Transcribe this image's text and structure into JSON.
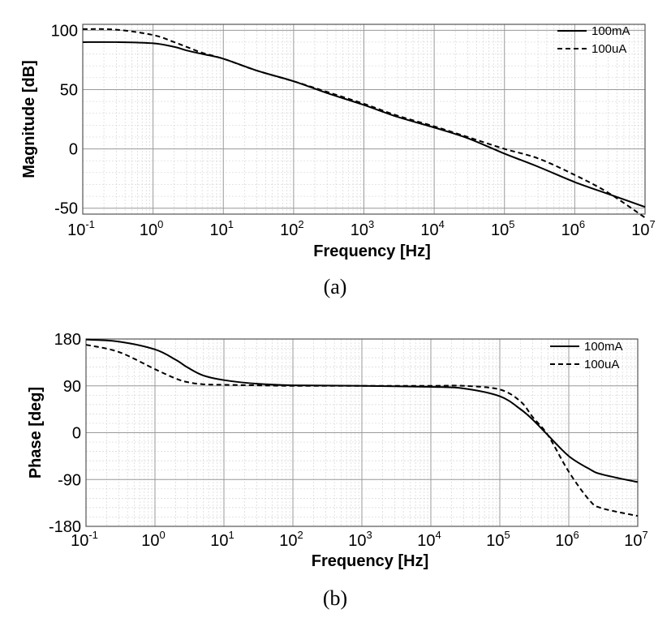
{
  "chart_data": [
    {
      "type": "line",
      "panel_label": "(a)",
      "xlabel": "Frequency [Hz]",
      "ylabel": "Magnitude [dB]",
      "xscale": "log",
      "xlim": [
        0.1,
        10000000
      ],
      "ylim": [
        -55,
        105
      ],
      "x_ticks": [
        {
          "base": "10",
          "exp": "-1"
        },
        {
          "base": "10",
          "exp": "0"
        },
        {
          "base": "10",
          "exp": "1"
        },
        {
          "base": "10",
          "exp": "2"
        },
        {
          "base": "10",
          "exp": "3"
        },
        {
          "base": "10",
          "exp": "4"
        },
        {
          "base": "10",
          "exp": "5"
        },
        {
          "base": "10",
          "exp": "6"
        },
        {
          "base": "10",
          "exp": "7"
        }
      ],
      "y_ticks": [
        "-50",
        "0",
        "50",
        "100"
      ],
      "grid": true,
      "legend": "top-right",
      "x": [
        0.1,
        0.3,
        1,
        2,
        3,
        5,
        10,
        30,
        100,
        300,
        1000,
        3000,
        10000,
        30000,
        100000,
        300000,
        1000000,
        3000000,
        10000000
      ],
      "series": [
        {
          "name": "100mA",
          "style": "solid",
          "values": [
            90,
            90,
            89,
            86,
            83,
            80,
            76,
            66,
            57,
            47,
            37,
            27,
            18,
            9,
            -4,
            -15,
            -28,
            -38,
            -49
          ]
        },
        {
          "name": "100uA",
          "style": "dashed",
          "values": [
            101,
            100.5,
            96,
            90,
            86,
            81,
            76,
            66,
            57,
            48,
            38,
            28,
            19,
            10,
            0,
            -8,
            -22,
            -37,
            -58
          ]
        }
      ]
    },
    {
      "type": "line",
      "panel_label": "(b)",
      "xlabel": "Frequency [Hz]",
      "ylabel": "Phase [deg]",
      "xscale": "log",
      "xlim": [
        0.1,
        10000000
      ],
      "ylim": [
        -180,
        180
      ],
      "x_ticks": [
        {
          "base": "10",
          "exp": "-1"
        },
        {
          "base": "10",
          "exp": "0"
        },
        {
          "base": "10",
          "exp": "1"
        },
        {
          "base": "10",
          "exp": "2"
        },
        {
          "base": "10",
          "exp": "3"
        },
        {
          "base": "10",
          "exp": "4"
        },
        {
          "base": "10",
          "exp": "5"
        },
        {
          "base": "10",
          "exp": "6"
        },
        {
          "base": "10",
          "exp": "7"
        }
      ],
      "y_ticks": [
        "-180",
        "-90",
        "0",
        "90",
        "180"
      ],
      "grid": true,
      "legend": "top-right",
      "x": [
        0.1,
        0.3,
        1,
        2,
        3,
        5,
        10,
        30,
        100,
        1000,
        10000,
        30000,
        100000,
        200000,
        300000,
        500000,
        1000000,
        2000000,
        3000000,
        10000000
      ],
      "series": [
        {
          "name": "100mA",
          "style": "solid",
          "values": [
            179,
            175,
            160,
            140,
            125,
            110,
            101,
            94,
            91,
            90,
            88,
            85,
            70,
            45,
            25,
            -5,
            -45,
            -70,
            -80,
            -95
          ]
        },
        {
          "name": "100uA",
          "style": "dashed",
          "values": [
            169,
            155,
            122,
            104,
            97,
            93,
            92,
            91,
            90,
            90,
            90,
            90,
            83,
            60,
            30,
            -5,
            -75,
            -130,
            -145,
            -160
          ]
        }
      ]
    }
  ]
}
